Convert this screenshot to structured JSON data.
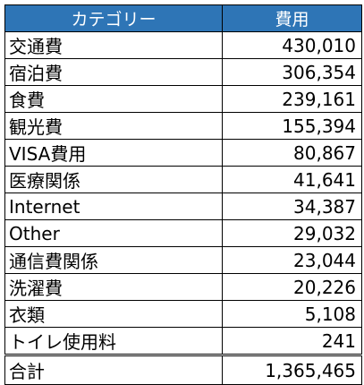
{
  "header": {
    "category": "カテゴリー",
    "cost": "費用"
  },
  "rows": [
    {
      "category": "交通費",
      "cost": "430,010"
    },
    {
      "category": "宿泊費",
      "cost": "306,354"
    },
    {
      "category": "食費",
      "cost": "239,161"
    },
    {
      "category": "観光費",
      "cost": "155,394"
    },
    {
      "category": "VISA費用",
      "cost": "80,867"
    },
    {
      "category": "医療関係",
      "cost": "41,641"
    },
    {
      "category": "Internet",
      "cost": "34,387"
    },
    {
      "category": "Other",
      "cost": "29,032"
    },
    {
      "category": "通信費関係",
      "cost": "23,044"
    },
    {
      "category": "洗濯費",
      "cost": "20,226"
    },
    {
      "category": "衣類",
      "cost": "5,108"
    },
    {
      "category": "トイレ使用料",
      "cost": "241"
    }
  ],
  "total": {
    "label": "合計",
    "cost": "1,365,465"
  },
  "colors": {
    "header_bg": "#2e75b6",
    "header_text": "#ffffff",
    "border": "#000000"
  }
}
